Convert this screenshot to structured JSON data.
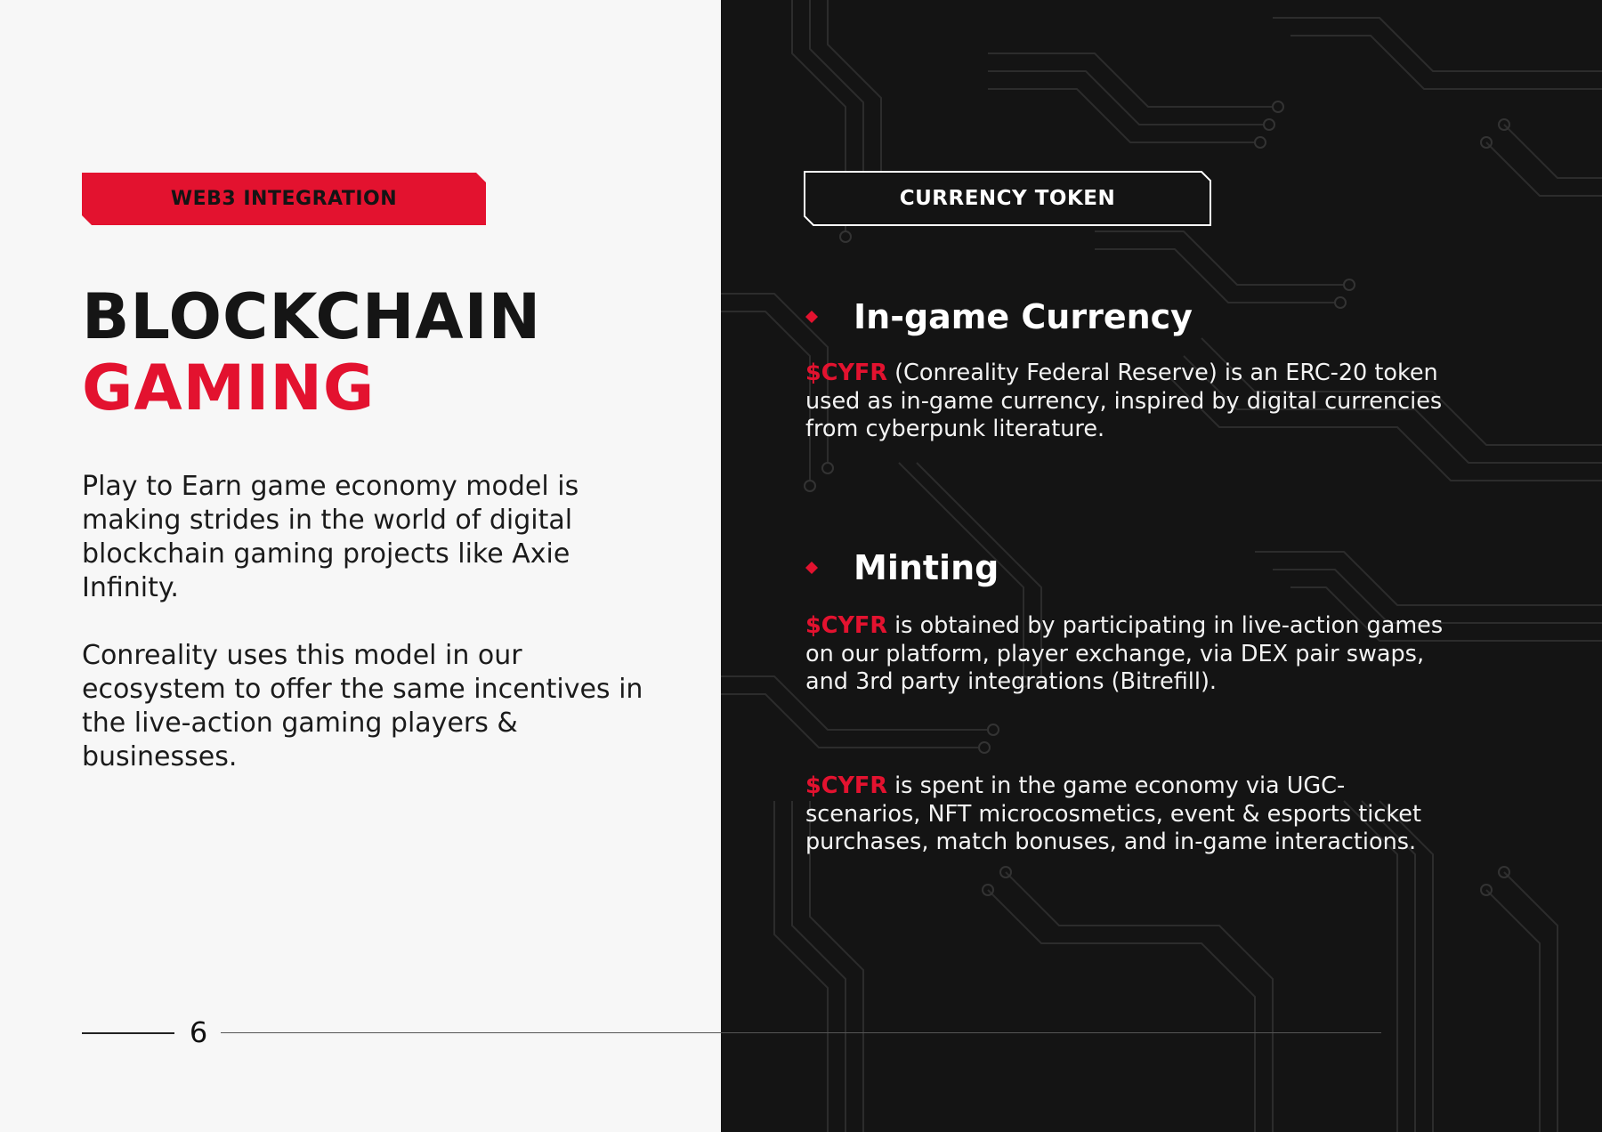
{
  "left": {
    "tag": "WEB3 INTEGRATION",
    "title_line1": "BLOCKCHAIN",
    "title_line2": "GAMING",
    "paragraph1": "Play to Earn game economy model is making strides in the world of digital blockchain gaming projects like Axie Infinity.",
    "paragraph2": "Conreality uses this model in our ecosystem to offer the same incentives in the live-action gaming players & businesses."
  },
  "footer": {
    "page_number": "6"
  },
  "right": {
    "tag": "CURRENCY TOKEN",
    "section1": {
      "heading": "In-game Currency",
      "token": "$CYFR",
      "text": " (Conreality Federal Reserve) is an ERC-20 token used as in-game currency, inspired by digital currencies from cyberpunk literature."
    },
    "section2": {
      "heading": "Minting",
      "para1_token": "$CYFR",
      "para1_text": " is obtained by participating in live-action games on our platform, player exchange, via DEX pair swaps, and 3rd party integrations (Bitrefill).",
      "para2_token": "$CYFR",
      "para2_text": " is spent in the game economy via UGC-scenarios, NFT microcosmetics, event & esports ticket purchases, match bonuses, and in-game interactions."
    }
  },
  "colors": {
    "accent_red": "#e3122f",
    "dark_panel": "#141414",
    "light_panel": "#f7f7f7"
  },
  "icons": [
    "red-diamond-bullet-icon",
    "circuit-board-pattern"
  ]
}
